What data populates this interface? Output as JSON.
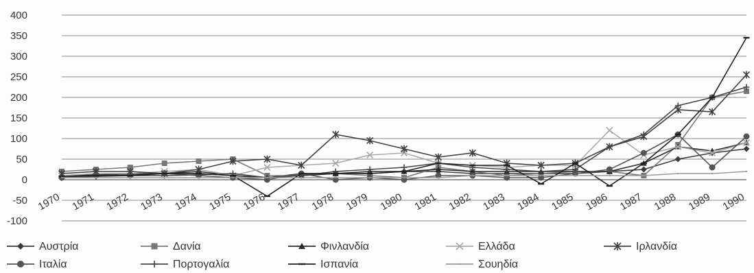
{
  "chart_data": {
    "type": "line",
    "title": "",
    "xlabel": "",
    "ylabel": "",
    "ylim": [
      -100,
      400
    ],
    "y_ticks": [
      400,
      350,
      300,
      250,
      200,
      150,
      100,
      50,
      0,
      -50,
      -100
    ],
    "y_tick_labels": [
      "400",
      "350",
      "300",
      "250",
      "200",
      "150",
      "100",
      "50",
      "0",
      "-50",
      "-100"
    ],
    "grid": "horizontal",
    "legend_position": "bottom",
    "categories": [
      "1970",
      "1971",
      "1972",
      "1973",
      "1974",
      "1975",
      "1976",
      "1977",
      "1978",
      "1979",
      "1980",
      "1981",
      "1982",
      "1983",
      "1984",
      "1985",
      "1986",
      "1987",
      "1988",
      "1989",
      "1990"
    ],
    "series": [
      {
        "name": "Αυστρία",
        "marker": "diamond",
        "color": "#3a3a3a",
        "values": [
          8,
          10,
          12,
          15,
          15,
          10,
          5,
          15,
          15,
          15,
          20,
          20,
          15,
          15,
          15,
          15,
          20,
          25,
          50,
          65,
          75
        ]
      },
      {
        "name": "Δανία",
        "marker": "square",
        "color": "#777777",
        "values": [
          20,
          25,
          30,
          40,
          45,
          50,
          10,
          10,
          15,
          10,
          5,
          30,
          20,
          10,
          15,
          20,
          20,
          10,
          85,
          200,
          215
        ]
      },
      {
        "name": "Φινλανδία",
        "marker": "triangle",
        "color": "#2a2a2a",
        "values": [
          10,
          12,
          15,
          15,
          20,
          10,
          5,
          10,
          15,
          20,
          20,
          25,
          20,
          20,
          20,
          20,
          20,
          40,
          80,
          70,
          90
        ]
      },
      {
        "name": "Ελλάδα",
        "marker": "x",
        "color": "#a8a8a8",
        "values": [
          10,
          15,
          15,
          20,
          25,
          10,
          30,
          35,
          40,
          60,
          65,
          40,
          35,
          30,
          35,
          35,
          120,
          60,
          80,
          65,
          90
        ]
      },
      {
        "name": "Ιρλανδία",
        "marker": "star",
        "color": "#404040",
        "values": [
          15,
          20,
          20,
          15,
          25,
          45,
          50,
          35,
          110,
          95,
          75,
          55,
          65,
          40,
          35,
          40,
          80,
          105,
          170,
          165,
          255
        ]
      },
      {
        "name": "Ιταλία",
        "marker": "circle",
        "color": "#555555",
        "values": [
          5,
          10,
          10,
          15,
          10,
          5,
          0,
          15,
          0,
          5,
          0,
          10,
          10,
          5,
          5,
          15,
          25,
          65,
          110,
          30,
          105
        ]
      },
      {
        "name": "Πορτογαλία",
        "marker": "plus",
        "color": "#454545",
        "values": [
          5,
          8,
          10,
          10,
          12,
          15,
          5,
          10,
          20,
          25,
          30,
          40,
          30,
          25,
          20,
          25,
          80,
          110,
          180,
          200,
          225
        ]
      },
      {
        "name": "Ισπανία",
        "marker": "dash",
        "color": "#202020",
        "values": [
          8,
          10,
          10,
          15,
          15,
          10,
          -40,
          15,
          15,
          15,
          20,
          40,
          35,
          35,
          -10,
          40,
          -15,
          40,
          110,
          200,
          345
        ]
      },
      {
        "name": "Σουηδία",
        "marker": "none",
        "color": "#9a9a9a",
        "values": [
          5,
          5,
          5,
          5,
          5,
          5,
          5,
          5,
          5,
          5,
          5,
          5,
          10,
          10,
          10,
          10,
          10,
          10,
          15,
          15,
          20
        ]
      }
    ]
  }
}
